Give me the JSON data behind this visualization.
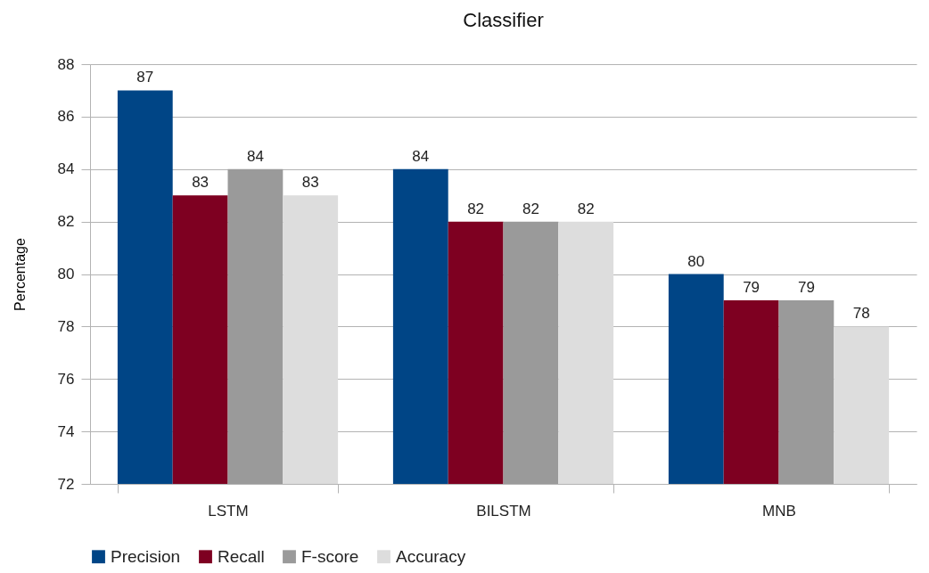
{
  "chart_data": {
    "type": "bar",
    "title": "Classifier",
    "ylabel": "Percentage",
    "categories": [
      "LSTM",
      "BILSTM",
      "MNB"
    ],
    "series": [
      {
        "name": "Precision",
        "color": "#004586",
        "values": [
          87,
          84,
          80
        ]
      },
      {
        "name": "Recall",
        "color": "#7e0021",
        "values": [
          83,
          82,
          79
        ]
      },
      {
        "name": "F-score",
        "color": "#9a9a9a",
        "values": [
          84,
          82,
          79
        ]
      },
      {
        "name": "Accuracy",
        "color": "#dddddd",
        "values": [
          83,
          82,
          78
        ]
      }
    ],
    "ylim": [
      72,
      88
    ],
    "yticks": [
      72,
      74,
      76,
      78,
      80,
      82,
      84,
      86,
      88
    ],
    "grid": "y",
    "legend": "bottom",
    "data_labels": true
  }
}
